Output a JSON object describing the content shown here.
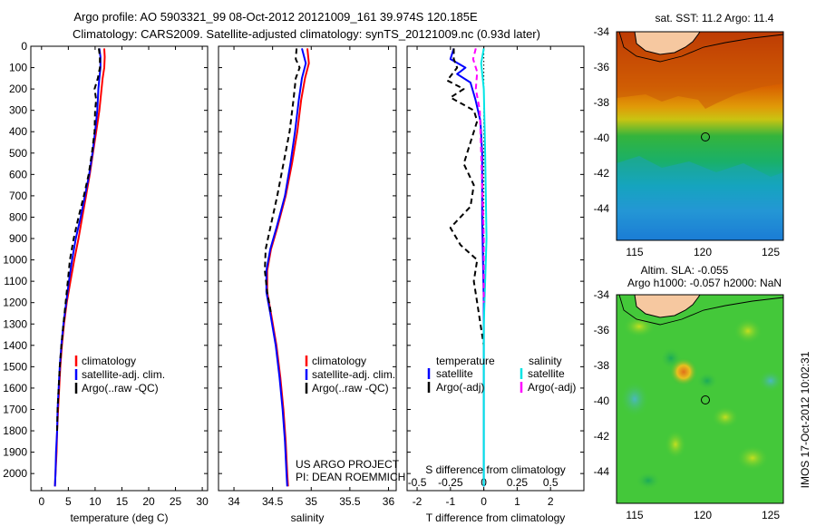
{
  "header": {
    "line1": "Argo profile: AO 5903321_99 08-Oct-2012 20121009_161 39.974S 120.185E",
    "line2": "Climatology: CARS2009. Satellite-adjusted climatology: synTS_20121009.nc (0.93d later)"
  },
  "stamp": "IMOS 17-Oct-2012 10:02:31",
  "chart_data": [
    {
      "id": "temperature",
      "type": "line",
      "xlabel": "temperature (deg C)",
      "ylabel": "",
      "xlim": [
        -2,
        31
      ],
      "ylim": [
        2080,
        0
      ],
      "xticks": [
        0,
        5,
        10,
        15,
        20,
        25,
        30
      ],
      "yticks": [
        0,
        100,
        200,
        300,
        400,
        500,
        600,
        700,
        800,
        900,
        1000,
        1100,
        1200,
        1300,
        1400,
        1500,
        1600,
        1700,
        1800,
        1900,
        2000
      ],
      "legend": [
        "climatology",
        "satellite-adj. clim.",
        "Argo(..raw -QC)"
      ],
      "legend_position": "lower-center",
      "series": [
        {
          "name": "climatology",
          "color": "#ff0000",
          "dash": "solid",
          "points": [
            [
              11.7,
              10
            ],
            [
              11.8,
              50
            ],
            [
              11.7,
              100
            ],
            [
              11.4,
              150
            ],
            [
              11.2,
              200
            ],
            [
              10.8,
              300
            ],
            [
              10.2,
              400
            ],
            [
              9.6,
              500
            ],
            [
              9.0,
              600
            ],
            [
              8.3,
              700
            ],
            [
              7.6,
              800
            ],
            [
              6.9,
              900
            ],
            [
              6.1,
              1000
            ],
            [
              5.4,
              1100
            ],
            [
              4.7,
              1200
            ],
            [
              4.2,
              1300
            ],
            [
              3.8,
              1400
            ],
            [
              3.5,
              1500
            ],
            [
              3.3,
              1600
            ],
            [
              3.1,
              1700
            ],
            [
              2.9,
              1800
            ],
            [
              2.8,
              1900
            ],
            [
              2.6,
              2000
            ],
            [
              2.5,
              2060
            ]
          ]
        },
        {
          "name": "satellite-adj. clim.",
          "color": "#0000ff",
          "dash": "solid",
          "points": [
            [
              10.8,
              10
            ],
            [
              11.0,
              50
            ],
            [
              11.0,
              100
            ],
            [
              10.8,
              150
            ],
            [
              10.6,
              200
            ],
            [
              10.4,
              300
            ],
            [
              10.0,
              400
            ],
            [
              9.5,
              500
            ],
            [
              8.9,
              600
            ],
            [
              8.1,
              700
            ],
            [
              7.3,
              800
            ],
            [
              6.4,
              900
            ],
            [
              5.7,
              1000
            ],
            [
              5.1,
              1100
            ],
            [
              4.6,
              1200
            ],
            [
              4.1,
              1300
            ],
            [
              3.7,
              1400
            ],
            [
              3.4,
              1500
            ],
            [
              3.2,
              1600
            ],
            [
              3.0,
              1700
            ],
            [
              2.9,
              1800
            ],
            [
              2.7,
              1900
            ],
            [
              2.6,
              2000
            ],
            [
              2.5,
              2060
            ]
          ]
        },
        {
          "name": "Argo(..raw -QC)",
          "color": "#000000",
          "dash": "dashed",
          "points": [
            [
              10.7,
              10
            ],
            [
              10.9,
              50
            ],
            [
              10.9,
              100
            ],
            [
              10.5,
              150
            ],
            [
              9.9,
              200
            ],
            [
              10.2,
              250
            ],
            [
              10.0,
              300
            ],
            [
              9.9,
              400
            ],
            [
              9.4,
              500
            ],
            [
              8.8,
              600
            ],
            [
              7.9,
              700
            ],
            [
              6.9,
              800
            ],
            [
              6.0,
              900
            ],
            [
              5.3,
              1000
            ],
            [
              4.9,
              1100
            ],
            [
              4.5,
              1200
            ],
            [
              4.1,
              1300
            ],
            [
              3.7,
              1400
            ],
            [
              3.4,
              1500
            ],
            [
              3.2,
              1600
            ],
            [
              3.0,
              1700
            ],
            [
              2.9,
              1800
            ]
          ]
        }
      ]
    },
    {
      "id": "salinity",
      "type": "line",
      "xlabel": "salinity",
      "xlim": [
        33.8,
        36.1
      ],
      "ylim": [
        2080,
        0
      ],
      "xticks": [
        34,
        34.5,
        35,
        35.5,
        36
      ],
      "yticks": [
        0,
        100,
        200,
        300,
        400,
        500,
        600,
        700,
        800,
        900,
        1000,
        1100,
        1200,
        1300,
        1400,
        1500,
        1600,
        1700,
        1800,
        1900,
        2000
      ],
      "legend": [
        "climatology",
        "satellite-adj. clim.",
        "Argo(..raw -QC)"
      ],
      "legend_position": "lower-right",
      "annotation": [
        "US ARGO PROJECT",
        "PI: DEAN ROEMMICH"
      ],
      "series": [
        {
          "name": "climatology",
          "color": "#ff0000",
          "dash": "solid",
          "points": [
            [
              34.95,
              10
            ],
            [
              34.97,
              80
            ],
            [
              34.92,
              150
            ],
            [
              34.87,
              250
            ],
            [
              34.82,
              400
            ],
            [
              34.75,
              550
            ],
            [
              34.67,
              700
            ],
            [
              34.56,
              850
            ],
            [
              34.48,
              950
            ],
            [
              34.43,
              1050
            ],
            [
              34.43,
              1150
            ],
            [
              34.48,
              1250
            ],
            [
              34.55,
              1400
            ],
            [
              34.6,
              1550
            ],
            [
              34.64,
              1700
            ],
            [
              34.67,
              1850
            ],
            [
              34.69,
              2000
            ],
            [
              34.7,
              2060
            ]
          ]
        },
        {
          "name": "satellite-adj. clim.",
          "color": "#0000ff",
          "dash": "solid",
          "points": [
            [
              34.88,
              10
            ],
            [
              34.93,
              80
            ],
            [
              34.88,
              150
            ],
            [
              34.84,
              250
            ],
            [
              34.79,
              400
            ],
            [
              34.73,
              550
            ],
            [
              34.66,
              700
            ],
            [
              34.55,
              850
            ],
            [
              34.47,
              950
            ],
            [
              34.42,
              1050
            ],
            [
              34.42,
              1150
            ],
            [
              34.47,
              1250
            ],
            [
              34.54,
              1400
            ],
            [
              34.59,
              1550
            ],
            [
              34.63,
              1700
            ],
            [
              34.66,
              1850
            ],
            [
              34.68,
              2000
            ],
            [
              34.69,
              2060
            ]
          ]
        },
        {
          "name": "Argo(..raw -QC)",
          "color": "#000000",
          "dash": "dashed",
          "points": [
            [
              34.81,
              10
            ],
            [
              34.8,
              60
            ],
            [
              34.85,
              100
            ],
            [
              34.8,
              150
            ],
            [
              34.77,
              250
            ],
            [
              34.72,
              400
            ],
            [
              34.64,
              550
            ],
            [
              34.56,
              700
            ],
            [
              34.47,
              850
            ],
            [
              34.41,
              950
            ],
            [
              34.4,
              1050
            ],
            [
              34.43,
              1150
            ],
            [
              34.48,
              1250
            ]
          ]
        }
      ]
    },
    {
      "id": "difference",
      "type": "line",
      "xlabel": "T difference from climatology",
      "x2label": "S difference from climatology",
      "xlim": [
        -2.3,
        3.0
      ],
      "x2lim": [
        -0.575,
        0.75
      ],
      "ylim": [
        2080,
        0
      ],
      "xticks": [
        -2,
        -1,
        0,
        1,
        2
      ],
      "x2ticks": [
        "-0.5",
        "-0.25",
        "0",
        "0.25",
        "0.5"
      ],
      "x2tickvals": [
        -0.5,
        -0.25,
        0,
        0.25,
        0.5
      ],
      "yticks": [
        0,
        100,
        200,
        300,
        400,
        500,
        600,
        700,
        800,
        900,
        1000,
        1100,
        1200,
        1300,
        1400,
        1500,
        1600,
        1700,
        1800,
        1900,
        2000
      ],
      "legend_headers": [
        "temperature",
        "salinity"
      ],
      "legend": [
        "satellite",
        "Argo(-adj)",
        "satellite",
        "Argo(-adj)"
      ],
      "legend_position": "lower-center",
      "series": [
        {
          "name": "satellite",
          "group": "temperature",
          "color": "#0000ff",
          "dash": "solid",
          "points": [
            [
              -0.9,
              10
            ],
            [
              -1.0,
              60
            ],
            [
              -0.55,
              100
            ],
            [
              -0.8,
              130
            ],
            [
              -0.4,
              170
            ],
            [
              -0.25,
              250
            ],
            [
              -0.1,
              350
            ],
            [
              -0.05,
              500
            ],
            [
              -0.05,
              800
            ],
            [
              0.0,
              1200
            ],
            [
              0.0,
              1700
            ],
            [
              0.0,
              2060
            ]
          ]
        },
        {
          "name": "Argo(-adj)",
          "group": "temperature",
          "color": "#000000",
          "dash": "dashed",
          "points": [
            [
              -0.9,
              10
            ],
            [
              -0.9,
              60
            ],
            [
              -0.8,
              100
            ],
            [
              -1.1,
              160
            ],
            [
              -0.6,
              200
            ],
            [
              -1.0,
              240
            ],
            [
              -0.3,
              300
            ],
            [
              -0.2,
              350
            ],
            [
              -0.4,
              450
            ],
            [
              -0.6,
              550
            ],
            [
              -0.3,
              650
            ],
            [
              -0.4,
              750
            ],
            [
              -1.0,
              850
            ],
            [
              -0.7,
              930
            ],
            [
              -0.2,
              1000
            ],
            [
              -0.3,
              1100
            ],
            [
              -0.2,
              1200
            ],
            [
              -0.1,
              1300
            ],
            [
              0.0,
              1400
            ]
          ]
        },
        {
          "name": "satellite",
          "group": "salinity",
          "color": "#00e5e5",
          "dash": "solid",
          "points": [
            [
              0.0,
              10
            ],
            [
              -0.02,
              80
            ],
            [
              0.0,
              200
            ],
            [
              0.01,
              500
            ],
            [
              0.02,
              900
            ],
            [
              0.01,
              1100
            ],
            [
              0.0,
              1300
            ],
            [
              0.0,
              1700
            ],
            [
              0.0,
              2060
            ]
          ]
        },
        {
          "name": "Argo(-adj)",
          "group": "salinity",
          "color": "#ff00ff",
          "dash": "dashed",
          "points": [
            [
              -0.06,
              10
            ],
            [
              -0.08,
              60
            ],
            [
              -0.05,
              120
            ],
            [
              -0.06,
              200
            ],
            [
              -0.03,
              300
            ],
            [
              -0.02,
              500
            ],
            [
              -0.01,
              700
            ],
            [
              0.0,
              900
            ],
            [
              0.0,
              1200
            ]
          ]
        }
      ]
    }
  ],
  "maps": {
    "sst": {
      "title": "sat. SST: 11.2 Argo: 11.4",
      "xticks": [
        "115",
        "120",
        "125"
      ],
      "yticks": [
        "-34",
        "-36",
        "-38",
        "-40",
        "-42",
        "-44"
      ]
    },
    "sla": {
      "title_line1": "Altim. SLA: -0.055",
      "title_line2": "Argo h1000: -0.057 h2000: NaN",
      "xticks": [
        "115",
        "120",
        "125"
      ],
      "yticks": [
        "-34",
        "-36",
        "-38",
        "-40",
        "-42",
        "-44"
      ]
    }
  }
}
